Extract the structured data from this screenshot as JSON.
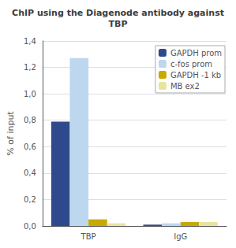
{
  "chart_data": {
    "type": "bar",
    "title": "ChIP using the Diagenode antibody against\nTBP",
    "ylabel": "% of input",
    "categories": [
      "TBP",
      "IgG"
    ],
    "series": [
      {
        "name": "GAPDH prom",
        "color": "#2E4A8C",
        "values": [
          0.79,
          0.01
        ]
      },
      {
        "name": "c-fos prom",
        "color": "#BDD7EE",
        "values": [
          1.27,
          0.02
        ]
      },
      {
        "name": "GAPDH -1 kb",
        "color": "#C9A800",
        "values": [
          0.05,
          0.03
        ]
      },
      {
        "name": "MB ex2",
        "color": "#E8E4A0",
        "values": [
          0.02,
          0.03
        ]
      }
    ],
    "ylim": [
      0,
      1.4
    ],
    "yticks": [
      {
        "value": 0.0,
        "label": "0,0"
      },
      {
        "value": 0.2,
        "label": "0,2"
      },
      {
        "value": 0.4,
        "label": "0,4"
      },
      {
        "value": 0.6,
        "label": "0,6"
      },
      {
        "value": 0.8,
        "label": "0,8"
      },
      {
        "value": 1.0,
        "label": "1,0"
      },
      {
        "value": 1.2,
        "label": "1,2"
      },
      {
        "value": 1.4,
        "label": "1,4"
      }
    ],
    "grid": true,
    "legend": "upper right"
  }
}
